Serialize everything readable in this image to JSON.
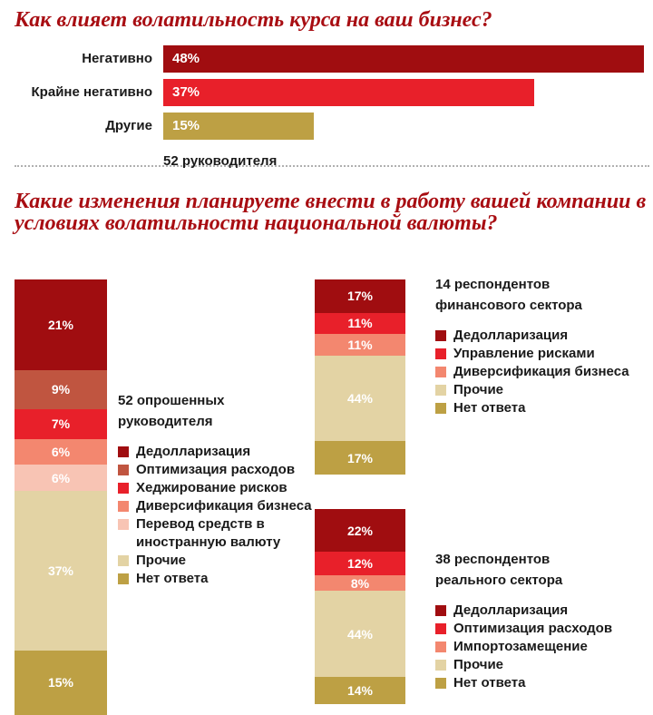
{
  "chart_data": [
    {
      "type": "bar",
      "orientation": "horizontal",
      "title": "Как влияет волатильность курса на ваш бизнес?",
      "categories": [
        "Негативно",
        "Крайне негативно",
        "Другие"
      ],
      "values": [
        48,
        37,
        15
      ],
      "value_labels": [
        "48%",
        "37%",
        "15%"
      ],
      "colors": [
        "#a00d10",
        "#e8202a",
        "#bda044"
      ],
      "note": "52 руководителя",
      "xlim": [
        0,
        48
      ]
    },
    {
      "type": "bar",
      "stacked": true,
      "title": "Какие изменения планируете внести в работу вашей компании в условиях волатильности национальной валюты?",
      "charts": [
        {
          "respondents": "52 опрошенных руководителя",
          "series": [
            {
              "name": "Дедолларизация",
              "value": 21,
              "label": "21%",
              "color": "#a00d10"
            },
            {
              "name": "Оптимизация расходов",
              "value": 9,
              "label": "9%",
              "color": "#c05540"
            },
            {
              "name": "Хеджирование рисков",
              "value": 7,
              "label": "7%",
              "color": "#e8202a"
            },
            {
              "name": "Диверсификация бизнеса",
              "value": 6,
              "label": "6%",
              "color": "#f3876f"
            },
            {
              "name": "Перевод средств в иностранную валюту",
              "value": 6,
              "label": "6%",
              "color": "#f8c4b4"
            },
            {
              "name": "Прочие",
              "value": 37,
              "label": "37%",
              "color": "#e3d3a4"
            },
            {
              "name": "Нет ответа",
              "value": 15,
              "label": "15%",
              "color": "#bda044"
            }
          ]
        },
        {
          "respondents": "14 респондентов финансового сектора",
          "series": [
            {
              "name": "Дедолларизация",
              "value": 17,
              "label": "17%",
              "color": "#a00d10"
            },
            {
              "name": "Управление рисками",
              "value": 11,
              "label": "11%",
              "color": "#e8202a"
            },
            {
              "name": "Диверсификация бизнеса",
              "value": 11,
              "label": "11%",
              "color": "#f3876f"
            },
            {
              "name": "Прочие",
              "value": 44,
              "label": "44%",
              "color": "#e3d3a4"
            },
            {
              "name": "Нет ответа",
              "value": 17,
              "label": "17%",
              "color": "#bda044"
            }
          ]
        },
        {
          "respondents": "38 респондентов реального сектора",
          "series": [
            {
              "name": "Дедолларизация",
              "value": 22,
              "label": "22%",
              "color": "#a00d10"
            },
            {
              "name": "Оптимизация расходов",
              "value": 12,
              "label": "12%",
              "color": "#e8202a"
            },
            {
              "name": "Импортозамещение",
              "value": 8,
              "label": "8%",
              "color": "#f3876f"
            },
            {
              "name": "Прочие",
              "value": 44,
              "label": "44%",
              "color": "#e3d3a4"
            },
            {
              "name": "Нет ответа",
              "value": 14,
              "label": "14%",
              "color": "#bda044"
            }
          ]
        }
      ]
    }
  ]
}
